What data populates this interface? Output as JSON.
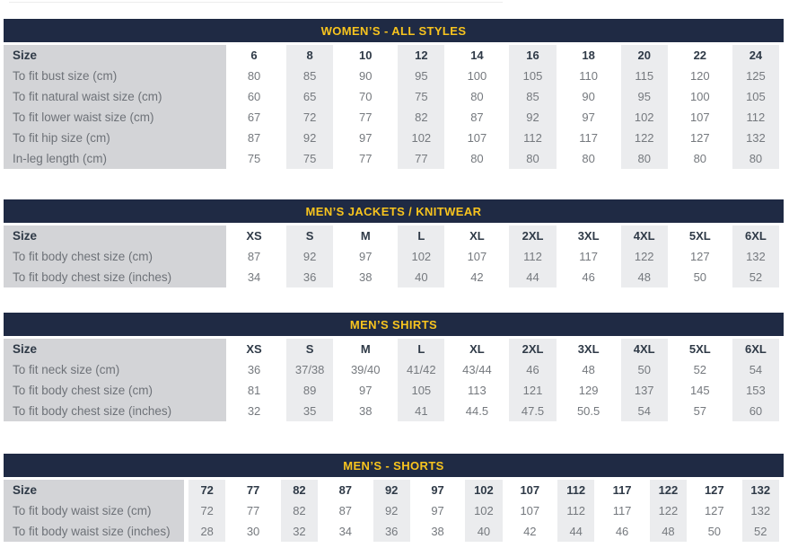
{
  "colors": {
    "header_bg": "#1F2A44",
    "header_text": "#F8C41E",
    "label_column_bg": "#D3D4D7",
    "stripe_bg": "#EBECEE",
    "bold_text": "#2F3A47",
    "muted_text": "#75797E"
  },
  "tables": [
    {
      "title": "WOMEN’S - ALL STYLES",
      "size_row_label": "Size",
      "sizes": [
        "6",
        "8",
        "10",
        "12",
        "14",
        "16",
        "18",
        "20",
        "22",
        "24"
      ],
      "stripe_first_column": false,
      "rows": [
        {
          "label": "To fit bust size (cm)",
          "values": [
            "80",
            "85",
            "90",
            "95",
            "100",
            "105",
            "110",
            "115",
            "120",
            "125"
          ]
        },
        {
          "label": "To fit natural waist size (cm)",
          "values": [
            "60",
            "65",
            "70",
            "75",
            "80",
            "85",
            "90",
            "95",
            "100",
            "105"
          ]
        },
        {
          "label": "To fit lower waist size (cm)",
          "values": [
            "67",
            "72",
            "77",
            "82",
            "87",
            "92",
            "97",
            "102",
            "107",
            "112"
          ]
        },
        {
          "label": "To fit hip size (cm)",
          "values": [
            "87",
            "92",
            "97",
            "102",
            "107",
            "112",
            "117",
            "122",
            "127",
            "132"
          ]
        },
        {
          "label": "In-leg length (cm)",
          "values": [
            "75",
            "75",
            "77",
            "77",
            "80",
            "80",
            "80",
            "80",
            "80",
            "80"
          ]
        }
      ]
    },
    {
      "title": "MEN’S JACKETS / KNITWEAR",
      "size_row_label": "Size",
      "sizes": [
        "XS",
        "S",
        "M",
        "L",
        "XL",
        "2XL",
        "3XL",
        "4XL",
        "5XL",
        "6XL"
      ],
      "stripe_first_column": false,
      "rows": [
        {
          "label": "To fit body chest size (cm)",
          "values": [
            "87",
            "92",
            "97",
            "102",
            "107",
            "112",
            "117",
            "122",
            "127",
            "132"
          ]
        },
        {
          "label": "To fit body chest size (inches)",
          "values": [
            "34",
            "36",
            "38",
            "40",
            "42",
            "44",
            "46",
            "48",
            "50",
            "52"
          ]
        }
      ]
    },
    {
      "title": "MEN’S SHIRTS",
      "size_row_label": "Size",
      "sizes": [
        "XS",
        "S",
        "M",
        "L",
        "XL",
        "2XL",
        "3XL",
        "4XL",
        "5XL",
        "6XL"
      ],
      "stripe_first_column": false,
      "rows": [
        {
          "label": "To fit neck size (cm)",
          "values": [
            "36",
            "37/38",
            "39/40",
            "41/42",
            "43/44",
            "46",
            "48",
            "50",
            "52",
            "54"
          ]
        },
        {
          "label": "To fit body chest size (cm)",
          "values": [
            "81",
            "89",
            "97",
            "105",
            "113",
            "121",
            "129",
            "137",
            "145",
            "153"
          ]
        },
        {
          "label": "To fit body chest size (inches)",
          "values": [
            "32",
            "35",
            "38",
            "41",
            "44.5",
            "47.5",
            "50.5",
            "54",
            "57",
            "60"
          ]
        }
      ]
    },
    {
      "title": "MEN’S - SHORTS",
      "size_row_label": "Size",
      "sizes": [
        "72",
        "77",
        "82",
        "87",
        "92",
        "97",
        "102",
        "107",
        "112",
        "117",
        "122",
        "127",
        "132"
      ],
      "stripe_first_column": true,
      "rows": [
        {
          "label": "To fit body waist size (cm)",
          "values": [
            "72",
            "77",
            "82",
            "87",
            "92",
            "97",
            "102",
            "107",
            "112",
            "117",
            "122",
            "127",
            "132"
          ]
        },
        {
          "label": "To fit body waist size (inches)",
          "values": [
            "28",
            "30",
            "32",
            "34",
            "36",
            "38",
            "40",
            "42",
            "44",
            "46",
            "48",
            "50",
            "52"
          ]
        }
      ]
    }
  ]
}
